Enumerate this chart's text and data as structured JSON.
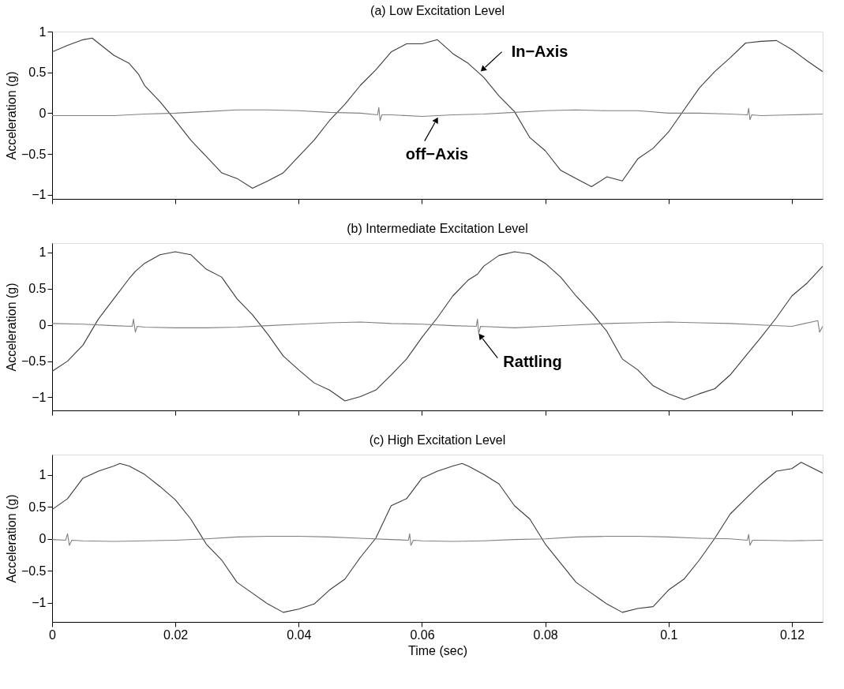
{
  "chart_data": [
    {
      "type": "line",
      "title": "(a) Low Excitation Level",
      "ylabel": "Acceleration (g)",
      "xlim": [
        0,
        0.125
      ],
      "xticks": [
        0,
        0.02,
        0.04,
        0.06,
        0.08,
        0.1,
        0.12
      ],
      "ylim": [
        -1.05,
        1
      ],
      "yticks": [
        -1,
        -0.5,
        0,
        0.5,
        1
      ],
      "tick_labels": "y",
      "series": [
        {
          "color": "#3c3c3c",
          "x": [
            0,
            0.0025,
            0.005,
            0.0065,
            0.0075,
            0.01,
            0.0125,
            0.014,
            0.015,
            0.0175,
            0.02,
            0.0225,
            0.025,
            0.0275,
            0.03,
            0.0325,
            0.035,
            0.0375,
            0.04,
            0.0425,
            0.045,
            0.0475,
            0.05,
            0.0525,
            0.055,
            0.0575,
            0.06,
            0.0625,
            0.065,
            0.0675,
            0.07,
            0.0725,
            0.075,
            0.0775,
            0.08,
            0.0825,
            0.085,
            0.0875,
            0.09,
            0.0925,
            0.095,
            0.0975,
            0.1,
            0.1025,
            0.105,
            0.1075,
            0.11,
            0.1125,
            0.115,
            0.1175,
            0.12,
            0.1225,
            0.125
          ],
          "values": [
            0.75,
            0.83,
            0.9,
            0.92,
            0.86,
            0.71,
            0.61,
            0.48,
            0.34,
            0.14,
            -0.09,
            -0.33,
            -0.53,
            -0.73,
            -0.8,
            -0.92,
            -0.83,
            -0.73,
            -0.53,
            -0.33,
            -0.09,
            0.11,
            0.34,
            0.53,
            0.75,
            0.85,
            0.85,
            0.9,
            0.73,
            0.61,
            0.44,
            0.21,
            0.02,
            -0.3,
            -0.46,
            -0.7,
            -0.8,
            -0.9,
            -0.78,
            -0.83,
            -0.56,
            -0.43,
            -0.23,
            0.04,
            0.31,
            0.51,
            0.68,
            0.86,
            0.88,
            0.89,
            0.78,
            0.64,
            0.51
          ]
        },
        {
          "color": "#808080",
          "x": [
            0,
            0.005,
            0.01,
            0.015,
            0.02,
            0.025,
            0.03,
            0.035,
            0.04,
            0.045,
            0.05,
            0.0528,
            0.053,
            0.0532,
            0.0535,
            0.055,
            0.06,
            0.065,
            0.07,
            0.075,
            0.08,
            0.085,
            0.09,
            0.095,
            0.1,
            0.105,
            0.11,
            0.1128,
            0.113,
            0.1132,
            0.1135,
            0.115,
            0.12,
            0.125
          ],
          "values": [
            -0.03,
            -0.03,
            -0.03,
            -0.01,
            0.0,
            0.02,
            0.04,
            0.04,
            0.03,
            0.01,
            0.0,
            -0.02,
            0.07,
            -0.09,
            -0.02,
            -0.02,
            -0.04,
            -0.02,
            -0.01,
            0.01,
            0.03,
            0.04,
            0.03,
            0.03,
            0.0,
            0.0,
            -0.01,
            -0.02,
            0.06,
            -0.08,
            -0.02,
            -0.03,
            -0.02,
            -0.01
          ]
        }
      ],
      "annotations": [
        {
          "text": "In−Axis",
          "x": 0.0695,
          "y": 0.51
        },
        {
          "text": "off−Axis",
          "x": 0.0626,
          "y": -0.05
        }
      ]
    },
    {
      "type": "line",
      "title": "(b) Intermediate Excitation Level",
      "ylabel": "Acceleration (g)",
      "xlim": [
        0,
        0.125
      ],
      "xticks": [
        0,
        0.02,
        0.04,
        0.06,
        0.08,
        0.1,
        0.12
      ],
      "ylim": [
        -1.18,
        1.13
      ],
      "yticks": [
        -1,
        -0.5,
        0,
        0.5,
        1
      ],
      "tick_labels": "y",
      "series": [
        {
          "color": "#3c3c3c",
          "x": [
            0,
            0.0025,
            0.005,
            0.0075,
            0.01,
            0.0125,
            0.0135,
            0.015,
            0.0175,
            0.02,
            0.0225,
            0.025,
            0.0275,
            0.03,
            0.0325,
            0.035,
            0.0375,
            0.04,
            0.0425,
            0.045,
            0.0475,
            0.05,
            0.0525,
            0.055,
            0.0575,
            0.06,
            0.0625,
            0.065,
            0.0675,
            0.069,
            0.07,
            0.0725,
            0.075,
            0.0775,
            0.08,
            0.0825,
            0.085,
            0.0875,
            0.09,
            0.0925,
            0.095,
            0.0975,
            0.1,
            0.1025,
            0.105,
            0.1075,
            0.11,
            0.1125,
            0.115,
            0.1175,
            0.12,
            0.1225,
            0.125
          ],
          "values": [
            -0.64,
            -0.5,
            -0.28,
            0.08,
            0.36,
            0.64,
            0.74,
            0.85,
            0.97,
            1.01,
            0.97,
            0.77,
            0.66,
            0.36,
            0.14,
            -0.13,
            -0.43,
            -0.62,
            -0.8,
            -0.9,
            -1.05,
            -0.99,
            -0.9,
            -0.69,
            -0.47,
            -0.17,
            0.1,
            0.4,
            0.62,
            0.7,
            0.81,
            0.96,
            1.01,
            0.98,
            0.85,
            0.66,
            0.4,
            0.17,
            -0.09,
            -0.47,
            -0.62,
            -0.84,
            -0.95,
            -1.03,
            -0.95,
            -0.88,
            -0.69,
            -0.43,
            -0.17,
            0.1,
            0.4,
            0.58,
            0.81
          ]
        },
        {
          "color": "#808080",
          "x": [
            0,
            0.005,
            0.01,
            0.013,
            0.0132,
            0.0135,
            0.0138,
            0.015,
            0.02,
            0.025,
            0.03,
            0.035,
            0.04,
            0.045,
            0.05,
            0.055,
            0.06,
            0.065,
            0.0688,
            0.069,
            0.0692,
            0.0695,
            0.075,
            0.08,
            0.085,
            0.09,
            0.095,
            0.1,
            0.105,
            0.11,
            0.115,
            0.12,
            0.1242,
            0.1245,
            0.125
          ],
          "values": [
            0.02,
            0.01,
            -0.01,
            -0.02,
            0.08,
            -0.1,
            -0.02,
            -0.03,
            -0.04,
            -0.04,
            -0.03,
            -0.01,
            0.01,
            0.03,
            0.04,
            0.02,
            0.01,
            -0.01,
            -0.02,
            0.08,
            -0.12,
            -0.02,
            -0.04,
            -0.02,
            0.0,
            0.02,
            0.03,
            0.04,
            0.03,
            0.02,
            0.0,
            -0.02,
            0.06,
            -0.1,
            -0.02
          ]
        }
      ],
      "annotations": [
        {
          "text": "Rattling",
          "x": 0.0692,
          "y": -0.12
        }
      ]
    },
    {
      "type": "line",
      "title": "(c) High Excitation Level",
      "xlabel": "Time (sec)",
      "ylabel": "Acceleration (g)",
      "xlim": [
        0,
        0.125
      ],
      "xticks": [
        0,
        0.02,
        0.04,
        0.06,
        0.08,
        0.1,
        0.12
      ],
      "ylim": [
        -1.3,
        1.32
      ],
      "yticks": [
        -1,
        -0.5,
        0,
        0.5,
        1
      ],
      "series": [
        {
          "color": "#3c3c3c",
          "x": [
            0,
            0.0025,
            0.005,
            0.0075,
            0.01,
            0.011,
            0.0125,
            0.015,
            0.0175,
            0.02,
            0.0225,
            0.025,
            0.0275,
            0.03,
            0.0325,
            0.035,
            0.0375,
            0.04,
            0.0425,
            0.045,
            0.0475,
            0.05,
            0.0525,
            0.055,
            0.0575,
            0.06,
            0.0625,
            0.065,
            0.0665,
            0.0675,
            0.07,
            0.0725,
            0.075,
            0.0775,
            0.08,
            0.0825,
            0.085,
            0.0875,
            0.09,
            0.0925,
            0.095,
            0.0975,
            0.1,
            0.1025,
            0.105,
            0.1075,
            0.11,
            0.1125,
            0.115,
            0.1175,
            0.12,
            0.1215,
            0.125
          ],
          "values": [
            0.46,
            0.63,
            0.95,
            1.06,
            1.14,
            1.18,
            1.14,
            1.01,
            0.82,
            0.61,
            0.31,
            -0.08,
            -0.33,
            -0.68,
            -0.85,
            -1.02,
            -1.15,
            -1.1,
            -1.02,
            -0.8,
            -0.63,
            -0.29,
            0.01,
            0.52,
            0.63,
            0.95,
            1.06,
            1.14,
            1.18,
            1.14,
            1.01,
            0.86,
            0.52,
            0.31,
            -0.08,
            -0.38,
            -0.68,
            -0.85,
            -1.02,
            -1.15,
            -1.09,
            -1.06,
            -0.8,
            -0.63,
            -0.33,
            0.01,
            0.39,
            0.63,
            0.86,
            1.06,
            1.1,
            1.2,
            1.03
          ]
        },
        {
          "color": "#808080",
          "x": [
            0,
            0.0022,
            0.0025,
            0.0028,
            0.0032,
            0.005,
            0.01,
            0.015,
            0.02,
            0.025,
            0.03,
            0.035,
            0.04,
            0.045,
            0.05,
            0.055,
            0.0578,
            0.058,
            0.0582,
            0.0586,
            0.06,
            0.065,
            0.07,
            0.075,
            0.08,
            0.085,
            0.09,
            0.095,
            0.1,
            0.105,
            0.11,
            0.1128,
            0.113,
            0.1132,
            0.1136,
            0.115,
            0.12,
            0.125
          ],
          "values": [
            -0.01,
            -0.02,
            0.08,
            -0.1,
            -0.02,
            -0.03,
            -0.04,
            -0.03,
            -0.02,
            0.0,
            0.03,
            0.04,
            0.04,
            0.03,
            0.01,
            -0.01,
            -0.02,
            0.08,
            -0.1,
            -0.02,
            -0.03,
            -0.04,
            -0.03,
            -0.01,
            0.0,
            0.03,
            0.04,
            0.04,
            0.03,
            0.01,
            0.0,
            -0.02,
            0.07,
            -0.1,
            -0.02,
            -0.02,
            -0.03,
            -0.02
          ]
        }
      ]
    }
  ]
}
